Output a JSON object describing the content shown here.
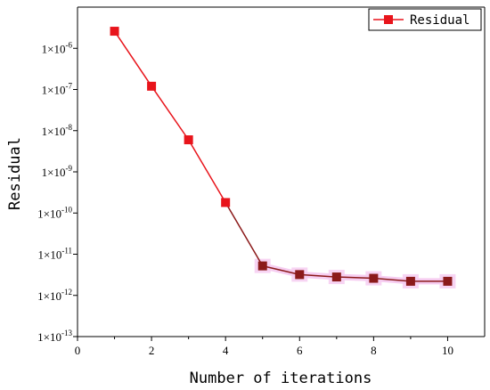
{
  "chart_data": {
    "type": "line",
    "xlabel": "Number of iterations",
    "ylabel": "Residual",
    "xlim": [
      0,
      11
    ],
    "ylim": [
      1e-13,
      1e-05
    ],
    "yscale": "log",
    "grid": false,
    "legend_position": "top-right",
    "x_ticks": [
      "0",
      "2",
      "4",
      "6",
      "8",
      "10"
    ],
    "y_tick_prefix": "1×10",
    "y_tick_exponents": [
      "-6",
      "-7",
      "-8",
      "-9",
      "-10",
      "-11",
      "-12",
      "-13"
    ],
    "series": [
      {
        "name": "Residual",
        "color": "#e8141b",
        "x": [
          1,
          2,
          3,
          4,
          5,
          6,
          7,
          8,
          9,
          10
        ],
        "y": [
          2.6e-06,
          1.2e-07,
          6e-09,
          1.8e-10,
          5.2e-12,
          3.2e-12,
          2.8e-12,
          2.6e-12,
          2.2e-12,
          2.2e-12
        ]
      }
    ],
    "highlight_color": "#8b1a1a"
  }
}
